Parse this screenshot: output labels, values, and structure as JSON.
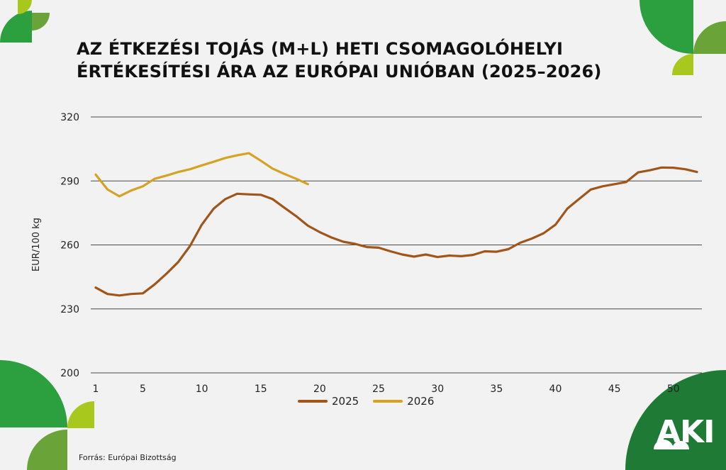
{
  "title_lines": [
    "AZ ÉTKEZÉSI TOJÁS (M+L) HETI CSOMAGOLÓHELYI",
    "ÉRTÉKESÍTÉSI ÁRA AZ EURÓPAI UNIÓBAN (2025–2026)"
  ],
  "source": "Forrás: Európai Bizottság",
  "logo": "AKI",
  "colors": {
    "series_2025": "#a0561a",
    "series_2026": "#d4a322",
    "deco_green": "#1f8f3c",
    "deco_mid_green": "#2ca03f",
    "deco_lime": "#a8c81e",
    "deco_olive": "#6aa338"
  },
  "chart_data": {
    "type": "line",
    "ylabel": "EUR/100 kg",
    "xlabel": "",
    "ylim": [
      200,
      320
    ],
    "xlim": [
      1,
      52
    ],
    "yticks": [
      200,
      230,
      260,
      290,
      320
    ],
    "xticks": [
      1,
      5,
      10,
      15,
      20,
      25,
      30,
      35,
      40,
      45,
      50
    ],
    "grid": "horizontal",
    "legend_position": "bottom",
    "series": [
      {
        "name": "2025",
        "x": [
          1,
          2,
          3,
          4,
          5,
          6,
          7,
          8,
          9,
          10,
          11,
          12,
          13,
          14,
          15,
          16,
          17,
          18,
          19,
          20,
          21,
          22,
          23,
          24,
          25,
          26,
          27,
          28,
          29,
          30,
          31,
          32,
          33,
          34,
          35,
          36,
          37,
          38,
          39,
          40,
          41,
          42,
          43,
          44,
          45,
          46,
          47,
          48,
          49,
          50,
          51,
          52
        ],
        "values": [
          240,
          237,
          236.3,
          237,
          237.3,
          241.5,
          246.5,
          252,
          259.5,
          269.5,
          277,
          281.5,
          284,
          283.7,
          283.5,
          281.5,
          277.5,
          273.5,
          269,
          266,
          263.5,
          261.5,
          260.5,
          259,
          258.7,
          257,
          255.5,
          254.5,
          255.5,
          254.3,
          255,
          254.7,
          255.3,
          257,
          256.8,
          258,
          261,
          263,
          265.5,
          269.5,
          277,
          281.5,
          286,
          287.5,
          288.5,
          289.5,
          294,
          295,
          296.3,
          296.2,
          295.5,
          294.2
        ]
      },
      {
        "name": "2026",
        "x": [
          1,
          2,
          3,
          4,
          5,
          6,
          7,
          8,
          9,
          10,
          11,
          12,
          13,
          14,
          15,
          16,
          17,
          18,
          19
        ],
        "values": [
          293,
          286,
          282.8,
          285.5,
          287.5,
          291,
          292.5,
          294.2,
          295.5,
          297.3,
          299,
          300.8,
          302,
          303,
          299.5,
          295.8,
          293.3,
          291,
          288.5
        ]
      }
    ]
  }
}
